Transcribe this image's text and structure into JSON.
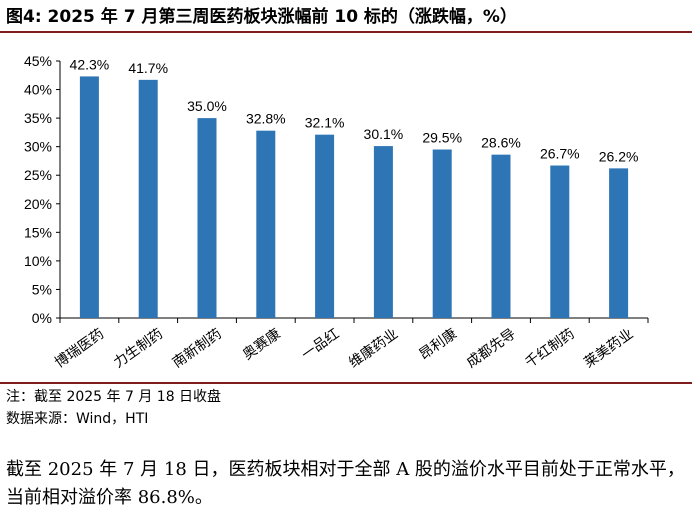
{
  "title": "图4:  2025 年 7 月第三周医药板块涨幅前 10 标的（涨跌幅，%）",
  "note_source_1": "注：截至 2025 年 7 月 18 日收盘",
  "note_source_2": "数据来源：Wind，HTI",
  "body_text": "截至 2025 年 7 月 18 日，医药板块相对于全部 A 股的溢价水平目前处于正常水平，当前相对溢价率 86.8%。",
  "colors": {
    "bar": "#2e75b6",
    "rule": "#7f1d1d"
  },
  "chart_data": {
    "type": "bar",
    "categories": [
      "博瑞医药",
      "力生制药",
      "南新制药",
      "奥赛康",
      "一品红",
      "维康药业",
      "昂利康",
      "成都先导",
      "千红制药",
      "莱美药业"
    ],
    "values": [
      42.3,
      41.7,
      35.0,
      32.8,
      32.1,
      30.1,
      29.5,
      28.6,
      26.7,
      26.2
    ],
    "value_labels": [
      "42.3%",
      "41.7%",
      "35.0%",
      "32.8%",
      "32.1%",
      "30.1%",
      "29.5%",
      "28.6%",
      "26.7%",
      "26.2%"
    ],
    "ylim": [
      0,
      45
    ],
    "yticks": [
      0,
      5,
      10,
      15,
      20,
      25,
      30,
      35,
      40,
      45
    ],
    "ytick_labels": [
      "0%",
      "5%",
      "10%",
      "15%",
      "20%",
      "25%",
      "30%",
      "35%",
      "40%",
      "45%"
    ],
    "xlabel": "",
    "ylabel": "",
    "grid": false,
    "legend": false
  }
}
